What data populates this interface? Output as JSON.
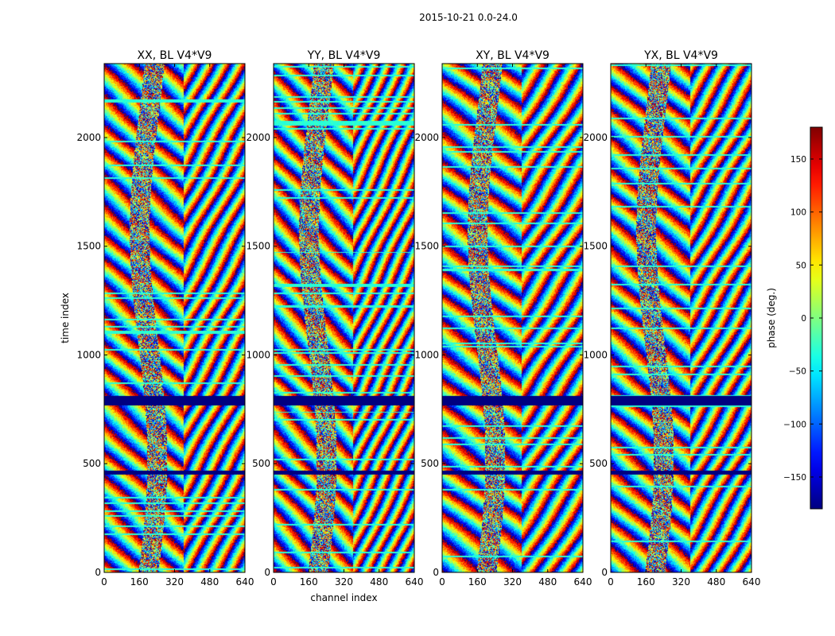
{
  "figure": {
    "suptitle": "2015-10-21 0.0-24.0"
  },
  "chart_data": [
    {
      "type": "heatmap",
      "title": "XX, BL V4*V9",
      "xlabel": "",
      "ylabel": "time index",
      "xlim": [
        0,
        640
      ],
      "ylim": [
        0,
        2340
      ],
      "xticks": [
        0,
        160,
        320,
        480,
        640
      ],
      "yticks": [
        0,
        500,
        1000,
        1500,
        2000
      ],
      "value_range": [
        -180,
        180
      ],
      "masked_bands": [
        [
          770,
          815
        ],
        [
          450,
          470
        ]
      ]
    },
    {
      "type": "heatmap",
      "title": "YY, BL V4*V9",
      "xlabel": "channel index",
      "ylabel": "",
      "xlim": [
        0,
        640
      ],
      "ylim": [
        0,
        2340
      ],
      "xticks": [
        0,
        160,
        320,
        480,
        640
      ],
      "yticks": [
        0,
        500,
        1000,
        1500,
        2000
      ],
      "value_range": [
        -180,
        180
      ],
      "masked_bands": [
        [
          770,
          815
        ],
        [
          450,
          470
        ]
      ]
    },
    {
      "type": "heatmap",
      "title": "XY, BL V4*V9",
      "xlabel": "",
      "ylabel": "",
      "xlim": [
        0,
        640
      ],
      "ylim": [
        0,
        2340
      ],
      "xticks": [
        0,
        160,
        320,
        480,
        640
      ],
      "yticks": [
        0,
        500,
        1000,
        1500,
        2000
      ],
      "value_range": [
        -180,
        180
      ],
      "masked_bands": [
        [
          770,
          815
        ],
        [
          450,
          470
        ]
      ]
    },
    {
      "type": "heatmap",
      "title": "YX, BL V4*V9",
      "xlabel": "",
      "ylabel": "",
      "xlim": [
        0,
        640
      ],
      "ylim": [
        0,
        2340
      ],
      "xticks": [
        0,
        160,
        320,
        480,
        640
      ],
      "yticks": [
        0,
        500,
        1000,
        1500,
        2000
      ],
      "value_range": [
        -180,
        180
      ],
      "masked_bands": [
        [
          770,
          815
        ],
        [
          450,
          470
        ]
      ]
    }
  ],
  "colorbar": {
    "label": "phase (deg.)",
    "range": [
      -180,
      180
    ],
    "ticks": [
      -150,
      -100,
      -50,
      0,
      50,
      100,
      150
    ],
    "tick_labels": [
      "−150",
      "−100",
      "−50",
      "0",
      "50",
      "100",
      "150"
    ],
    "colormap": "jet",
    "colors": [
      "#00007f",
      "#0000ff",
      "#00ffff",
      "#7fff7f",
      "#ffff00",
      "#ff0000",
      "#7f0000"
    ]
  }
}
